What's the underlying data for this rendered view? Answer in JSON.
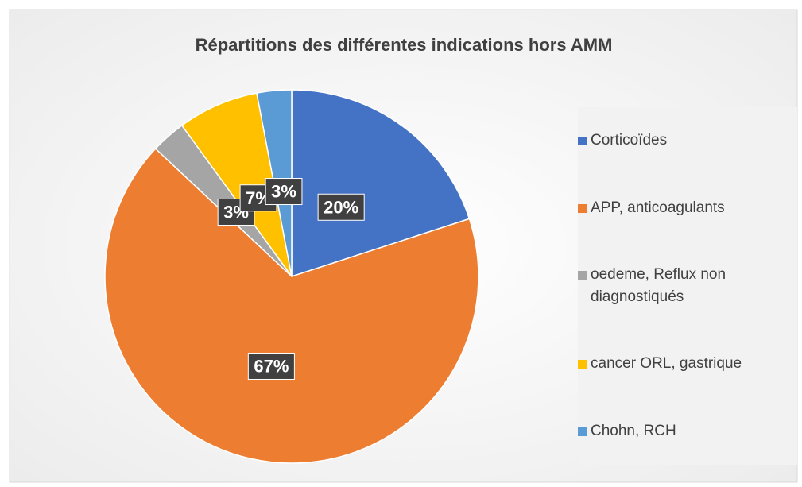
{
  "chart_data": {
    "type": "pie",
    "title": "Répartitions des différentes indications hors AMM",
    "categories": [
      "Corticoïdes",
      "APP, anticoagulants",
      "oedeme, Reflux non diagnostiqués",
      "cancer ORL, gastrique",
      "Chohn, RCH"
    ],
    "values": [
      20,
      67,
      3,
      7,
      3
    ],
    "value_labels": [
      "20%",
      "67%",
      "3%",
      "7%",
      "3%"
    ],
    "colors": [
      "#4472c4",
      "#ed7d31",
      "#a5a5a5",
      "#ffc000",
      "#5b9bd5"
    ],
    "legend": "right"
  }
}
